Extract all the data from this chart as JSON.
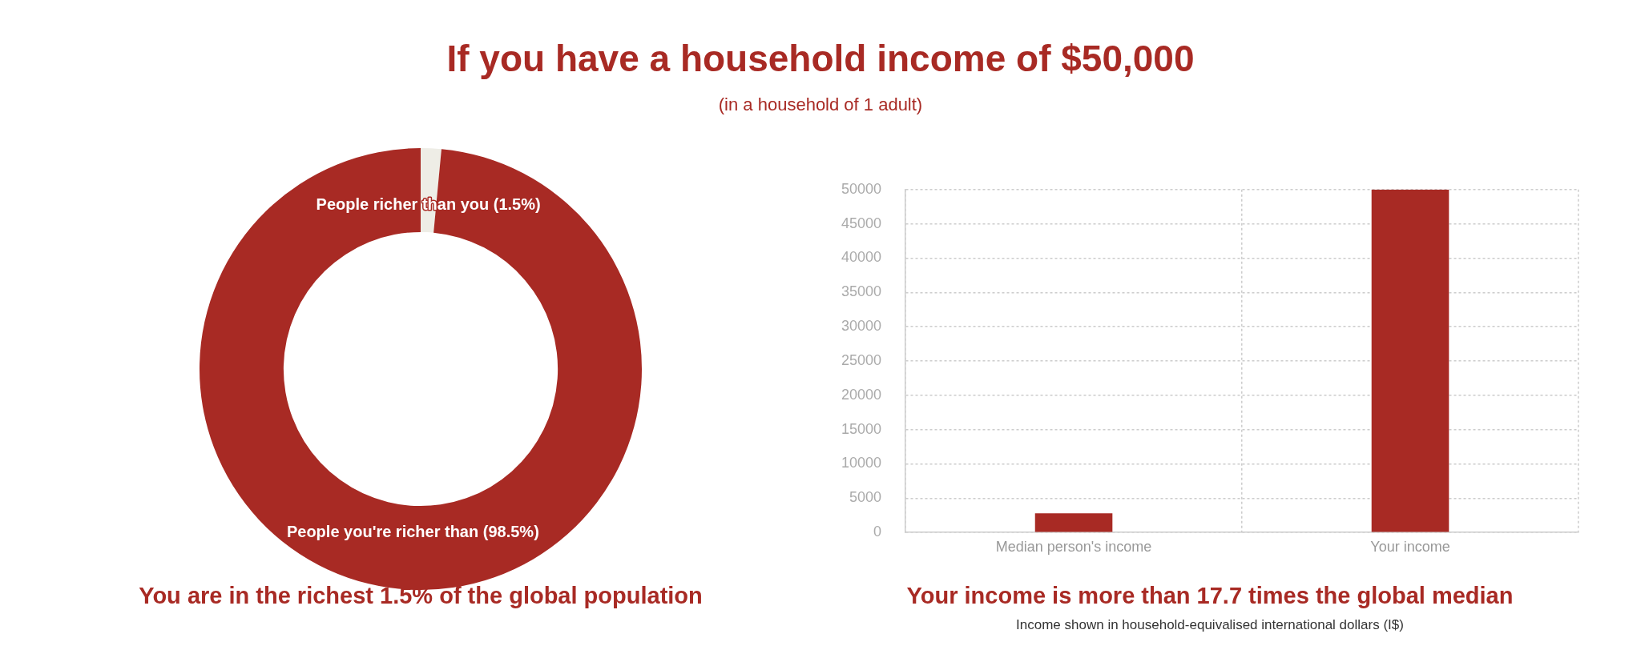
{
  "chart_data": [
    {
      "type": "donut",
      "title": "If you have a household income of $50,000",
      "subtitle": "(in a household of 1 adult)",
      "categories": [
        "People richer than you (1.5%)",
        "People you're richer than (98.5%)"
      ],
      "values": [
        1.5,
        98.5
      ],
      "colors": [
        "#eeede6",
        "#a82a24"
      ],
      "annotations": [
        "You are in the richest 1.5% of the global population"
      ]
    },
    {
      "type": "bar",
      "categories": [
        "Median person's income",
        "Your income"
      ],
      "values": [
        2800,
        50000
      ],
      "color": "#a82a24",
      "ylim": [
        0,
        50000
      ],
      "yticks": [
        0,
        5000,
        10000,
        15000,
        20000,
        25000,
        30000,
        35000,
        40000,
        45000,
        50000
      ],
      "grid": true,
      "annotations": [
        "Your income is more than 17.7 times the global median",
        "Income shown in household-equivalised international dollars (I$)"
      ]
    }
  ]
}
